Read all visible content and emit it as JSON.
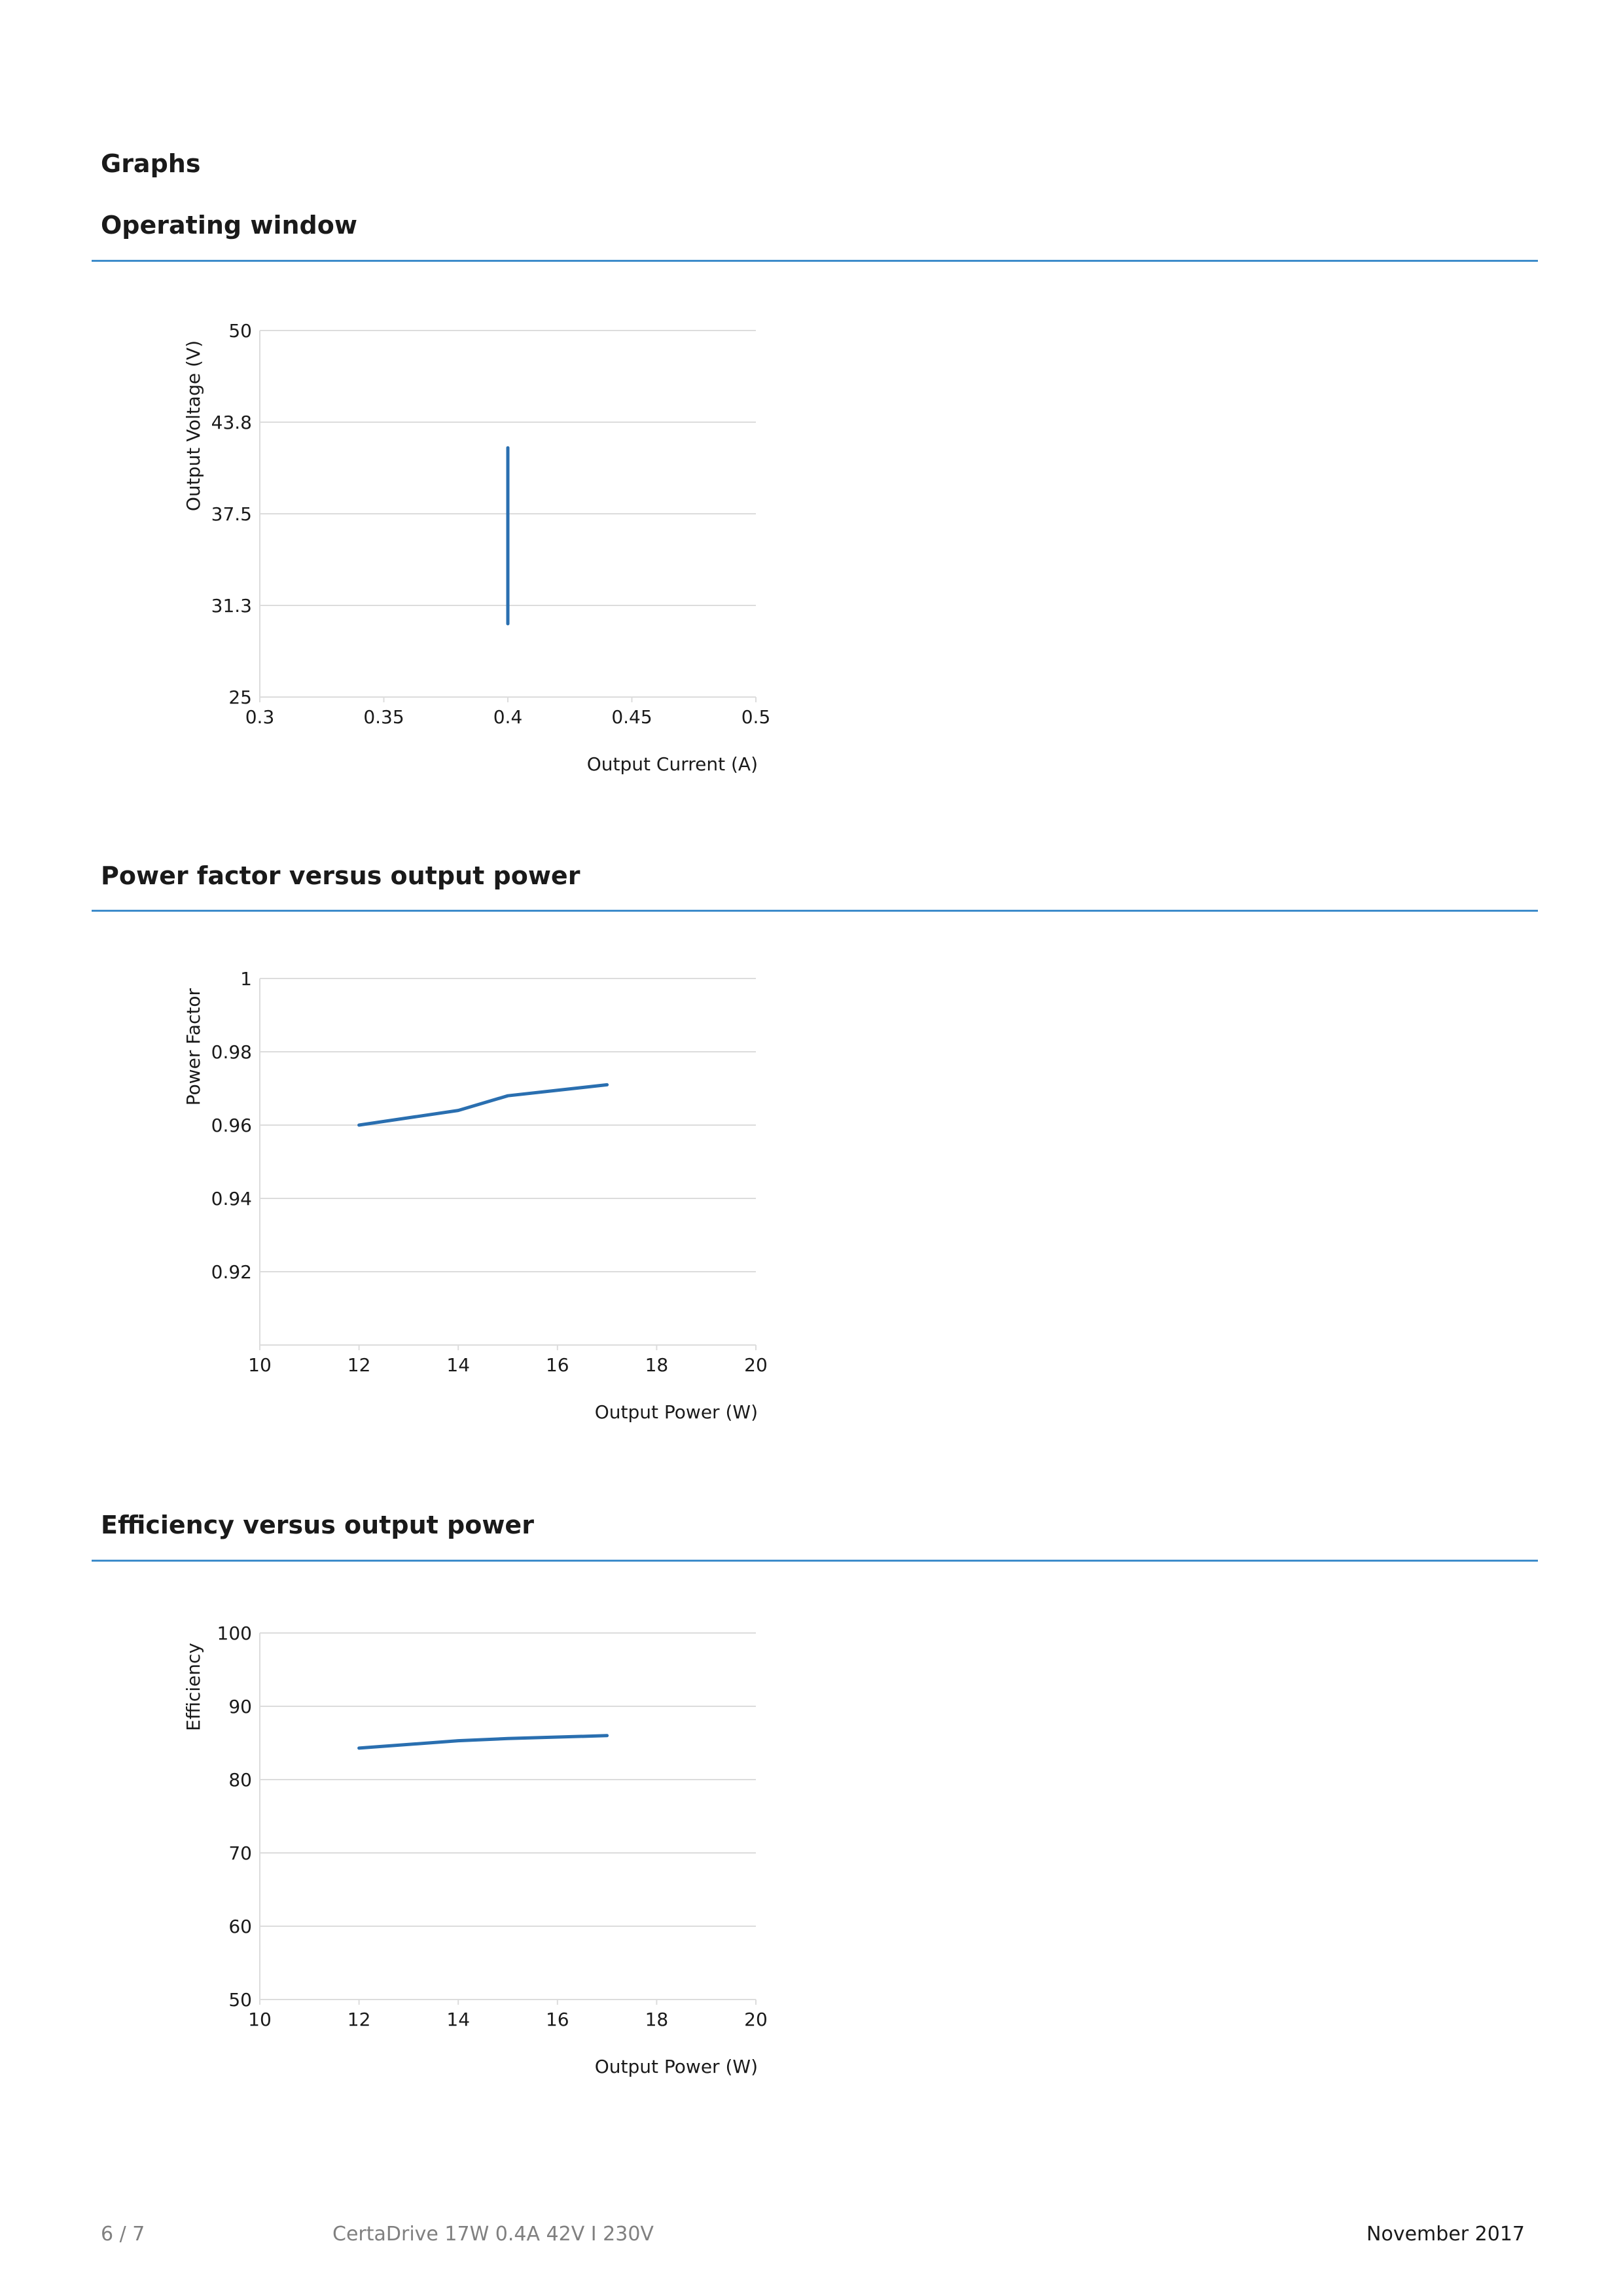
{
  "page": {
    "heading": "Graphs",
    "footer": {
      "page_number": "6 / 7",
      "product": "CertaDrive 17W 0.4A 42V I 230V",
      "date": "November 2017"
    },
    "accent_color": "#3d8ccb",
    "line_color": "#2a6fb0",
    "grid_color": "#dcdcdc"
  },
  "sections": [
    {
      "title": "Operating window"
    },
    {
      "title": "Power factor versus output power"
    },
    {
      "title": "Efficiency versus output power"
    }
  ],
  "chart_data": [
    {
      "type": "line",
      "title": "Operating window",
      "xlabel": "Output Current (A)",
      "ylabel": "Output Voltage (V)",
      "xlim": [
        0.3,
        0.5
      ],
      "ylim": [
        25,
        50
      ],
      "xticks": [
        0.3,
        0.35,
        0.4,
        0.45,
        0.5
      ],
      "xtick_labels": [
        "0.3",
        "0.35",
        "0.4",
        "0.45",
        "0.5"
      ],
      "yticks": [
        25,
        31.25,
        37.5,
        43.75,
        50
      ],
      "ytick_labels": [
        "25",
        "31.3",
        "37.5",
        "43.8",
        "50"
      ],
      "grid": true,
      "series": [
        {
          "x": [
            0.4,
            0.4
          ],
          "y": [
            30,
            42
          ]
        }
      ]
    },
    {
      "type": "line",
      "title": "Power factor versus output power",
      "xlabel": "Output Power (W)",
      "ylabel": "Power Factor",
      "xlim": [
        10,
        20
      ],
      "ylim": [
        0.9,
        1.0
      ],
      "xticks": [
        10,
        12,
        14,
        16,
        18,
        20
      ],
      "xtick_labels": [
        "10",
        "12",
        "14",
        "16",
        "18",
        "20"
      ],
      "yticks": [
        0.92,
        0.94,
        0.96,
        0.98,
        1.0
      ],
      "ytick_labels": [
        "0.92",
        "0.94",
        "0.96",
        "0.98",
        "1"
      ],
      "grid": true,
      "series": [
        {
          "x": [
            12,
            14,
            15,
            17
          ],
          "y": [
            0.96,
            0.964,
            0.968,
            0.971
          ]
        }
      ]
    },
    {
      "type": "line",
      "title": "Efficiency versus output power",
      "xlabel": "Output Power (W)",
      "ylabel": "Efficiency",
      "xlim": [
        10,
        20
      ],
      "ylim": [
        50,
        100
      ],
      "xticks": [
        10,
        12,
        14,
        16,
        18,
        20
      ],
      "xtick_labels": [
        "10",
        "12",
        "14",
        "16",
        "18",
        "20"
      ],
      "yticks": [
        50,
        60,
        70,
        80,
        90,
        100
      ],
      "ytick_labels": [
        "50",
        "60",
        "70",
        "80",
        "90",
        "100"
      ],
      "grid": true,
      "series": [
        {
          "x": [
            12,
            14,
            15,
            17
          ],
          "y": [
            84.3,
            85.3,
            85.6,
            86.0
          ]
        }
      ]
    }
  ]
}
